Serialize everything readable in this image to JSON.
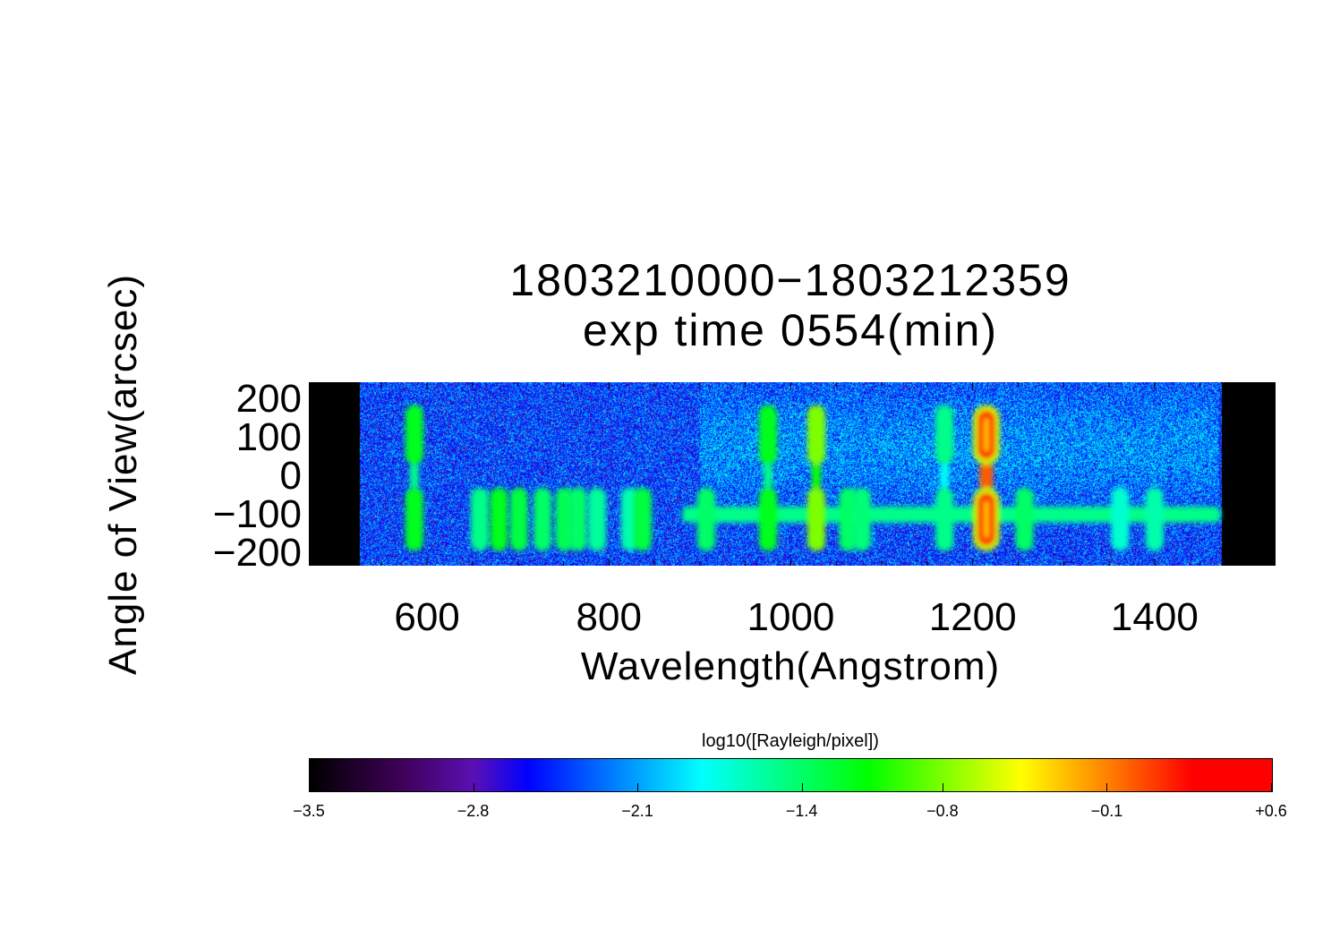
{
  "chart_data": {
    "type": "heatmap",
    "title": [
      "1803210000−1803212359",
      "exp time 0554(min)"
    ],
    "xlabel": "Wavelength(Angstrom)",
    "ylabel": "Angle of View(arcsec)",
    "xlim": [
      470,
      1533
    ],
    "ylim": [
      -233,
      244
    ],
    "xticks": [
      600,
      800,
      1000,
      1200,
      1400
    ],
    "xtick_labels": [
      "600",
      "800",
      "1000",
      "1200",
      "1400"
    ],
    "yticks": [
      200,
      100,
      0,
      -100,
      -200
    ],
    "ytick_labels": [
      "200",
      "100",
      "0",
      "−100",
      "−200"
    ],
    "data_range_wavelength": [
      526,
      1473
    ],
    "background_log10": -2.4,
    "continuum": {
      "angle": -100,
      "from": 880,
      "to": 1473,
      "log10": -1.5
    },
    "emission_lines": [
      {
        "wavelength": 586,
        "log10": -1.2,
        "upper": true,
        "lower": true
      },
      {
        "wavelength": 658,
        "log10": -1.5,
        "upper": false,
        "lower": true
      },
      {
        "wavelength": 679,
        "log10": -1.2,
        "upper": false,
        "lower": true
      },
      {
        "wavelength": 701,
        "log10": -1.3,
        "upper": false,
        "lower": true
      },
      {
        "wavelength": 727,
        "log10": -1.4,
        "upper": false,
        "lower": true
      },
      {
        "wavelength": 751,
        "log10": -1.35,
        "upper": false,
        "lower": true
      },
      {
        "wavelength": 766,
        "log10": -1.4,
        "upper": false,
        "lower": true
      },
      {
        "wavelength": 787,
        "log10": -1.55,
        "upper": false,
        "lower": true
      },
      {
        "wavelength": 823,
        "log10": -1.6,
        "upper": false,
        "lower": true
      },
      {
        "wavelength": 837,
        "log10": -1.3,
        "upper": false,
        "lower": true
      },
      {
        "wavelength": 907,
        "log10": -1.4,
        "upper": false,
        "lower": true
      },
      {
        "wavelength": 975,
        "log10": -1.2,
        "upper": true,
        "lower": true
      },
      {
        "wavelength": 1028,
        "log10": -0.8,
        "upper": true,
        "lower": true
      },
      {
        "wavelength": 1063,
        "log10": -1.4,
        "upper": false,
        "lower": true
      },
      {
        "wavelength": 1078,
        "log10": -1.45,
        "upper": false,
        "lower": true
      },
      {
        "wavelength": 1169,
        "log10": -1.5,
        "upper": true,
        "lower": true
      },
      {
        "wavelength": 1215,
        "log10": 0.3,
        "upper": true,
        "lower": true
      },
      {
        "wavelength": 1257,
        "log10": -1.4,
        "upper": false,
        "lower": true
      },
      {
        "wavelength": 1362,
        "log10": -1.7,
        "upper": false,
        "lower": true
      },
      {
        "wavelength": 1400,
        "log10": -1.6,
        "upper": false,
        "lower": true
      }
    ],
    "colorbar": {
      "title": "log10([Rayleigh/pixel])",
      "range": [
        -3.5,
        0.6
      ],
      "tick_labels": [
        "−3.5",
        "−2.8",
        "−2.1",
        "−1.4",
        "−0.8",
        "−0.1",
        "+0.6"
      ],
      "tick_values": [
        -3.5,
        -2.8,
        -2.1,
        -1.4,
        -0.8,
        -0.1,
        0.6
      ],
      "colormap": [
        {
          "value": -3.5,
          "color": "#000000"
        },
        {
          "value": -3.1,
          "color": "#40005a"
        },
        {
          "value": -2.8,
          "color": "#5a10b4"
        },
        {
          "value": -2.57,
          "color": "#0000ff"
        },
        {
          "value": -1.83,
          "color": "#00ffff"
        },
        {
          "value": -1.12,
          "color": "#00ff00"
        },
        {
          "value": -0.47,
          "color": "#ffff00"
        },
        {
          "value": -0.1,
          "color": "#ff8000"
        },
        {
          "value": 0.26,
          "color": "#ff0000"
        },
        {
          "value": 0.6,
          "color": "#ff0000"
        }
      ]
    }
  }
}
